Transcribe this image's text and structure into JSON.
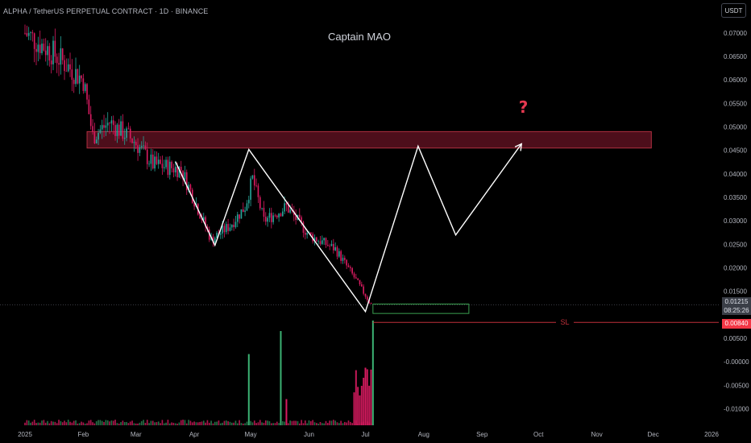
{
  "header": {
    "symbol_line": "ALPHA / TetherUS PERPETUAL CONTRACT · 1D · BINANCE",
    "currency": "USDT"
  },
  "annotation": {
    "title": "Captain MAO",
    "question_mark": "?",
    "stop_loss_label": "SL"
  },
  "price_tags": {
    "current_price": "0.01215",
    "countdown": "08:25:26",
    "stop_loss_price": "0.00840"
  },
  "colors": {
    "background": "#000000",
    "up": "#26a69a",
    "up_volume": "#2e8b57",
    "down": "#d81b60",
    "resistance_zone_fill": "#5a1020",
    "resistance_zone_border": "#b03040",
    "entry_zone_border": "#3aa050",
    "stop_loss": "#c0303a",
    "projection_line": "#ffffff",
    "question_mark": "#e53950",
    "axis_text": "#b2b5be"
  },
  "chart_data": {
    "type": "candlestick",
    "timeframe": "1D",
    "y_axis": {
      "range": [
        -0.0135,
        0.077
      ],
      "ticks": [
        "0.07000",
        "0.06500",
        "0.06000",
        "0.05500",
        "0.05000",
        "0.04500",
        "0.04000",
        "0.03500",
        "0.03000",
        "0.02500",
        "0.02000",
        "0.01500",
        "0.00500",
        "-0.00000",
        "-0.00500",
        "-0.01000"
      ]
    },
    "x_axis": {
      "labels": [
        "2025",
        "Feb",
        "Mar",
        "Apr",
        "May",
        "Jun",
        "Jul",
        "Aug",
        "Sep",
        "Oct",
        "Nov",
        "Dec",
        "2026"
      ]
    },
    "price_path": [
      {
        "date": "2025-01-01",
        "price": 0.07
      },
      {
        "date": "2025-01-15",
        "price": 0.066
      },
      {
        "date": "2025-02-01",
        "price": 0.06
      },
      {
        "date": "2025-02-06",
        "price": 0.048
      },
      {
        "date": "2025-02-15",
        "price": 0.051
      },
      {
        "date": "2025-02-28",
        "price": 0.047
      },
      {
        "date": "2025-03-10",
        "price": 0.042
      },
      {
        "date": "2025-03-25",
        "price": 0.041
      },
      {
        "date": "2025-04-10",
        "price": 0.026
      },
      {
        "date": "2025-04-20",
        "price": 0.029
      },
      {
        "date": "2025-04-28",
        "price": 0.033
      },
      {
        "date": "2025-05-02",
        "price": 0.039
      },
      {
        "date": "2025-05-08",
        "price": 0.03
      },
      {
        "date": "2025-05-20",
        "price": 0.033
      },
      {
        "date": "2025-06-01",
        "price": 0.027
      },
      {
        "date": "2025-06-15",
        "price": 0.024
      },
      {
        "date": "2025-06-25",
        "price": 0.018
      },
      {
        "date": "2025-07-04",
        "price": 0.0122
      }
    ],
    "volume_spikes": [
      {
        "date": "2025-04-30",
        "direction": "up",
        "relative": 0.68
      },
      {
        "date": "2025-05-17",
        "direction": "up",
        "relative": 0.9
      },
      {
        "date": "2025-05-20",
        "direction": "down",
        "relative": 0.25
      },
      {
        "date": "2025-07-01",
        "direction": "down",
        "relative": 0.55
      },
      {
        "date": "2025-07-05",
        "direction": "up",
        "relative": 1.0
      }
    ],
    "drawings": {
      "resistance_zone": {
        "from": "2025-02-03",
        "to": "2025-11-30",
        "low": 0.0455,
        "high": 0.049
      },
      "entry_zone": {
        "from": "2025-07-05",
        "to": "2025-08-25",
        "low": 0.0103,
        "high": 0.0123
      },
      "stop_loss": {
        "price": 0.0084,
        "label": "SL"
      },
      "projection_path": [
        {
          "date": "2025-03-22",
          "price": 0.0426
        },
        {
          "date": "2025-04-12",
          "price": 0.0248
        },
        {
          "date": "2025-04-30",
          "price": 0.0452
        },
        {
          "date": "2025-07-01",
          "price": 0.0107
        },
        {
          "date": "2025-07-29",
          "price": 0.0459
        },
        {
          "date": "2025-08-18",
          "price": 0.027
        },
        {
          "date": "2025-09-22",
          "price": 0.0464
        }
      ],
      "question_mark": {
        "date": "2025-09-23",
        "price": 0.053
      }
    }
  }
}
